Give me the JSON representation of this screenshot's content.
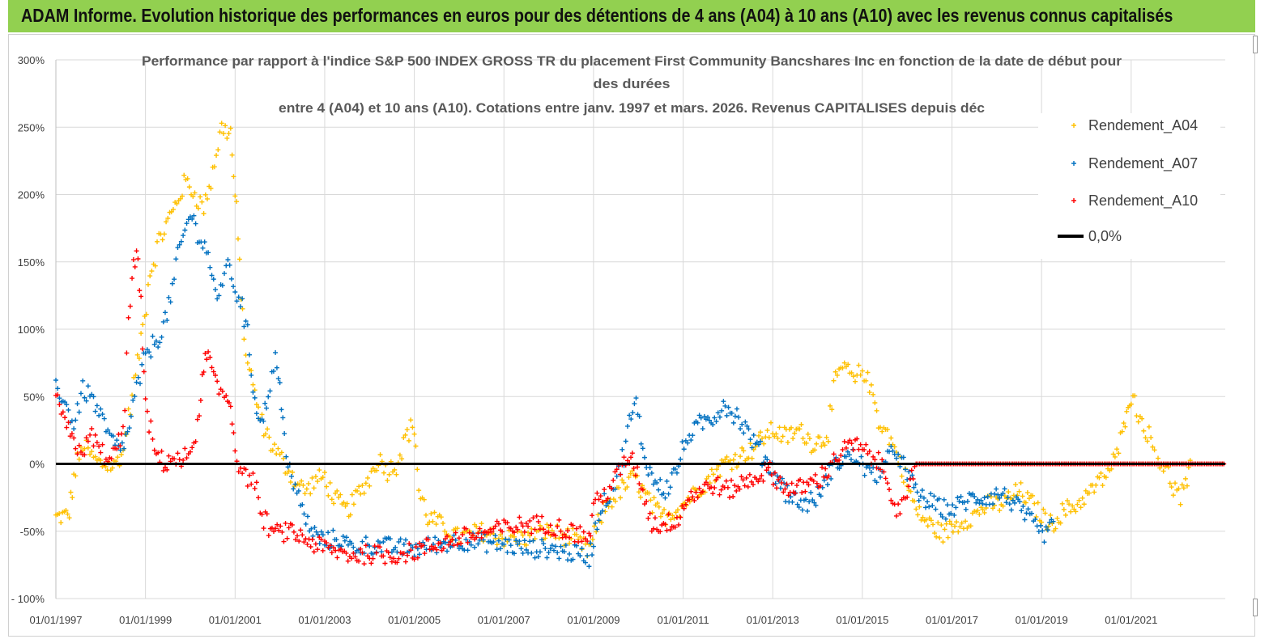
{
  "banner": {
    "text": "ADAM Informe. Evolution historique des performances en euros pour des détentions de 4 ans (A04) à 10 ans (A10) avec les revenus connus capitalisés"
  },
  "colors": {
    "banner": "#92d050",
    "a04": "#ffc000",
    "a07": "#0070c0",
    "a10": "#ff0000",
    "zero": "#000000",
    "grid": "#d9d9d9"
  },
  "chart_data": {
    "type": "scatter",
    "title_lines": [
      "Performance par rapport à l'indice S&P 500 INDEX GROSS TR  du placement First Community Bancshares Inc en fonction de la date de début pour",
      "des durées",
      "entre 4 (A04) et 10 ans (A10). Cotations entre janv. 1997 et mars. 2026. Revenus CAPITALISES depuis déc"
    ],
    "xlabel": "",
    "ylabel": "",
    "xlim": [
      1997.0,
      2023.1
    ],
    "ylim": [
      -100,
      300
    ],
    "y_ticks": [
      {
        "value": 300,
        "label": "300%"
      },
      {
        "value": 250,
        "label": "250%"
      },
      {
        "value": 200,
        "label": "200%"
      },
      {
        "value": 150,
        "label": "150%"
      },
      {
        "value": 100,
        "label": "100%"
      },
      {
        "value": 50,
        "label": "50%"
      },
      {
        "value": 0,
        "label": "0%"
      },
      {
        "value": -50,
        "label": "-50%"
      },
      {
        "value": -100,
        "label": "- 100%"
      }
    ],
    "x_ticks": [
      {
        "value": 1997,
        "label": "01/01/1997"
      },
      {
        "value": 1999,
        "label": "01/01/1999"
      },
      {
        "value": 2001,
        "label": "01/01/2001"
      },
      {
        "value": 2003,
        "label": "01/01/2003"
      },
      {
        "value": 2005,
        "label": "01/01/2005"
      },
      {
        "value": 2007,
        "label": "01/01/2007"
      },
      {
        "value": 2009,
        "label": "01/01/2009"
      },
      {
        "value": 2011,
        "label": "01/01/2011"
      },
      {
        "value": 2013,
        "label": "01/01/2013"
      },
      {
        "value": 2015,
        "label": "01/01/2015"
      },
      {
        "value": 2017,
        "label": "01/01/2017"
      },
      {
        "value": 2019,
        "label": "01/01/2019"
      },
      {
        "value": 2021,
        "label": "01/01/2021"
      }
    ],
    "legend": {
      "position": "top-right",
      "entries": [
        {
          "key": "a04",
          "label": "Rendement_A04",
          "style": "marker"
        },
        {
          "key": "a07",
          "label": "Rendement_A07",
          "style": "marker"
        },
        {
          "key": "a10",
          "label": "Rendement_A10",
          "style": "marker"
        },
        {
          "key": "zero",
          "label": "0,0%",
          "style": "line"
        }
      ]
    },
    "zero_line": 0,
    "series": [
      {
        "name": "Rendement_A04",
        "key": "a04",
        "spread": 7,
        "points": [
          [
            1997.0,
            -40
          ],
          [
            1997.3,
            -38
          ],
          [
            1997.4,
            -10
          ],
          [
            1997.6,
            15
          ],
          [
            1997.8,
            5
          ],
          [
            1998.0,
            0
          ],
          [
            1998.3,
            -2
          ],
          [
            1998.5,
            10
          ],
          [
            1998.7,
            50
          ],
          [
            1998.9,
            90
          ],
          [
            1999.1,
            140
          ],
          [
            1999.3,
            165
          ],
          [
            1999.5,
            180
          ],
          [
            1999.7,
            195
          ],
          [
            1999.9,
            210
          ],
          [
            2000.1,
            200
          ],
          [
            2000.3,
            190
          ],
          [
            2000.5,
            215
          ],
          [
            2000.7,
            250
          ],
          [
            2000.9,
            245
          ],
          [
            2001.0,
            200
          ],
          [
            2001.1,
            150
          ],
          [
            2001.2,
            90
          ],
          [
            2001.4,
            55
          ],
          [
            2001.6,
            30
          ],
          [
            2001.8,
            15
          ],
          [
            2002.0,
            5
          ],
          [
            2002.2,
            -5
          ],
          [
            2002.4,
            -15
          ],
          [
            2002.6,
            -20
          ],
          [
            2002.8,
            -12
          ],
          [
            2003.0,
            -10
          ],
          [
            2003.2,
            -25
          ],
          [
            2003.5,
            -35
          ],
          [
            2003.8,
            -20
          ],
          [
            2004.0,
            -10
          ],
          [
            2004.2,
            5
          ],
          [
            2004.4,
            -5
          ],
          [
            2004.6,
            0
          ],
          [
            2004.8,
            20
          ],
          [
            2005.0,
            30
          ],
          [
            2005.1,
            -20
          ],
          [
            2005.3,
            -40
          ],
          [
            2005.6,
            -45
          ],
          [
            2006.0,
            -55
          ],
          [
            2006.5,
            -50
          ],
          [
            2007.0,
            -55
          ],
          [
            2007.5,
            -55
          ],
          [
            2008.0,
            -50
          ],
          [
            2008.5,
            -55
          ],
          [
            2008.9,
            -65
          ],
          [
            2009.1,
            -45
          ],
          [
            2009.3,
            -30
          ],
          [
            2009.6,
            -20
          ],
          [
            2009.9,
            -10
          ],
          [
            2010.2,
            -25
          ],
          [
            2010.5,
            -40
          ],
          [
            2010.8,
            -35
          ],
          [
            2011.0,
            -30
          ],
          [
            2011.3,
            -20
          ],
          [
            2011.6,
            -10
          ],
          [
            2011.9,
            0
          ],
          [
            2012.2,
            5
          ],
          [
            2012.5,
            10
          ],
          [
            2012.8,
            20
          ],
          [
            2013.0,
            25
          ],
          [
            2013.3,
            20
          ],
          [
            2013.6,
            25
          ],
          [
            2013.9,
            15
          ],
          [
            2014.2,
            20
          ],
          [
            2014.4,
            60
          ],
          [
            2014.6,
            75
          ],
          [
            2014.8,
            60
          ],
          [
            2015.0,
            70
          ],
          [
            2015.2,
            55
          ],
          [
            2015.4,
            30
          ],
          [
            2015.6,
            20
          ],
          [
            2015.8,
            5
          ],
          [
            2016.0,
            -15
          ],
          [
            2016.2,
            -35
          ],
          [
            2016.5,
            -45
          ],
          [
            2016.8,
            -52
          ],
          [
            2017.1,
            -45
          ],
          [
            2017.5,
            -38
          ],
          [
            2017.8,
            -30
          ],
          [
            2018.1,
            -30
          ],
          [
            2018.5,
            -20
          ],
          [
            2018.8,
            -30
          ],
          [
            2019.0,
            -38
          ],
          [
            2019.2,
            -45
          ],
          [
            2019.5,
            -35
          ],
          [
            2019.8,
            -30
          ],
          [
            2020.1,
            -20
          ],
          [
            2020.4,
            -10
          ],
          [
            2020.6,
            0
          ],
          [
            2020.8,
            20
          ],
          [
            2020.9,
            45
          ],
          [
            2021.0,
            50
          ],
          [
            2021.2,
            35
          ],
          [
            2021.4,
            20
          ],
          [
            2021.6,
            5
          ],
          [
            2021.8,
            -5
          ],
          [
            2021.9,
            -15
          ],
          [
            2022.1,
            -25
          ],
          [
            2022.25,
            -15
          ],
          [
            2022.35,
            0
          ]
        ]
      },
      {
        "name": "Rendement_A07",
        "key": "a07",
        "spread": 7,
        "points": [
          [
            1997.0,
            60
          ],
          [
            1997.2,
            45
          ],
          [
            1997.4,
            30
          ],
          [
            1997.6,
            55
          ],
          [
            1997.8,
            50
          ],
          [
            1998.0,
            35
          ],
          [
            1998.2,
            20
          ],
          [
            1998.4,
            10
          ],
          [
            1998.6,
            20
          ],
          [
            1998.8,
            55
          ],
          [
            1999.0,
            80
          ],
          [
            1999.2,
            90
          ],
          [
            1999.4,
            100
          ],
          [
            1999.6,
            130
          ],
          [
            1999.8,
            165
          ],
          [
            2000.0,
            185
          ],
          [
            2000.2,
            170
          ],
          [
            2000.4,
            155
          ],
          [
            2000.6,
            120
          ],
          [
            2000.8,
            150
          ],
          [
            2001.0,
            130
          ],
          [
            2001.2,
            115
          ],
          [
            2001.4,
            55
          ],
          [
            2001.6,
            30
          ],
          [
            2001.7,
            45
          ],
          [
            2001.9,
            80
          ],
          [
            2002.0,
            55
          ],
          [
            2002.1,
            20
          ],
          [
            2002.3,
            -15
          ],
          [
            2002.5,
            -35
          ],
          [
            2002.7,
            -50
          ],
          [
            2003.0,
            -58
          ],
          [
            2003.3,
            -55
          ],
          [
            2003.6,
            -62
          ],
          [
            2004.0,
            -60
          ],
          [
            2004.5,
            -62
          ],
          [
            2005.0,
            -63
          ],
          [
            2005.5,
            -60
          ],
          [
            2006.0,
            -57
          ],
          [
            2006.5,
            -58
          ],
          [
            2007.0,
            -60
          ],
          [
            2007.5,
            -63
          ],
          [
            2008.0,
            -63
          ],
          [
            2008.5,
            -66
          ],
          [
            2008.9,
            -70
          ],
          [
            2009.0,
            -55
          ],
          [
            2009.2,
            -30
          ],
          [
            2009.4,
            -20
          ],
          [
            2009.6,
            -5
          ],
          [
            2009.8,
            30
          ],
          [
            2009.95,
            45
          ],
          [
            2010.1,
            10
          ],
          [
            2010.3,
            -10
          ],
          [
            2010.6,
            -20
          ],
          [
            2010.9,
            0
          ],
          [
            2011.1,
            20
          ],
          [
            2011.4,
            30
          ],
          [
            2011.7,
            35
          ],
          [
            2011.9,
            45
          ],
          [
            2012.2,
            35
          ],
          [
            2012.5,
            20
          ],
          [
            2012.8,
            5
          ],
          [
            2013.1,
            -10
          ],
          [
            2013.4,
            -25
          ],
          [
            2013.7,
            -30
          ],
          [
            2014.0,
            -25
          ],
          [
            2014.3,
            -5
          ],
          [
            2014.6,
            5
          ],
          [
            2014.9,
            5
          ],
          [
            2015.2,
            -10
          ],
          [
            2015.4,
            -5
          ],
          [
            2015.6,
            5
          ],
          [
            2015.8,
            10
          ],
          [
            2016.0,
            -10
          ],
          [
            2016.3,
            -25
          ],
          [
            2016.6,
            -30
          ],
          [
            2016.9,
            -35
          ],
          [
            2017.2,
            -30
          ],
          [
            2017.5,
            -25
          ],
          [
            2017.8,
            -25
          ],
          [
            2018.1,
            -22
          ],
          [
            2018.4,
            -30
          ],
          [
            2018.7,
            -40
          ],
          [
            2018.9,
            -50
          ],
          [
            2019.1,
            -52
          ],
          [
            2019.3,
            -45
          ]
        ]
      },
      {
        "name": "Rendement_A10",
        "key": "a10",
        "spread": 7,
        "points": [
          [
            1997.0,
            55
          ],
          [
            1997.2,
            30
          ],
          [
            1997.4,
            15
          ],
          [
            1997.6,
            10
          ],
          [
            1997.8,
            20
          ],
          [
            1998.0,
            10
          ],
          [
            1998.2,
            0
          ],
          [
            1998.4,
            15
          ],
          [
            1998.5,
            30
          ],
          [
            1998.7,
            140
          ],
          [
            1998.8,
            155
          ],
          [
            1998.9,
            120
          ],
          [
            1999.0,
            40
          ],
          [
            1999.2,
            10
          ],
          [
            1999.4,
            0
          ],
          [
            1999.6,
            5
          ],
          [
            1999.8,
            0
          ],
          [
            2000.0,
            10
          ],
          [
            2000.2,
            30
          ],
          [
            2000.3,
            75
          ],
          [
            2000.4,
            80
          ],
          [
            2000.6,
            55
          ],
          [
            2000.8,
            50
          ],
          [
            2000.9,
            45
          ],
          [
            2001.0,
            10
          ],
          [
            2001.2,
            -10
          ],
          [
            2001.4,
            -10
          ],
          [
            2001.6,
            -40
          ],
          [
            2001.9,
            -52
          ],
          [
            2002.2,
            -50
          ],
          [
            2002.5,
            -55
          ],
          [
            2002.8,
            -60
          ],
          [
            2003.2,
            -65
          ],
          [
            2003.6,
            -68
          ],
          [
            2004.0,
            -67
          ],
          [
            2004.5,
            -68
          ],
          [
            2005.0,
            -65
          ],
          [
            2005.5,
            -60
          ],
          [
            2006.0,
            -55
          ],
          [
            2006.5,
            -52
          ],
          [
            2007.0,
            -48
          ],
          [
            2007.5,
            -45
          ],
          [
            2008.0,
            -45
          ],
          [
            2008.5,
            -50
          ],
          [
            2008.9,
            -55
          ],
          [
            2009.0,
            -30
          ],
          [
            2009.2,
            -25
          ],
          [
            2009.4,
            -15
          ],
          [
            2009.6,
            -5
          ],
          [
            2009.8,
            5
          ],
          [
            2009.9,
            0
          ],
          [
            2010.1,
            -20
          ],
          [
            2010.3,
            -45
          ],
          [
            2010.6,
            -45
          ],
          [
            2010.9,
            -40
          ],
          [
            2011.1,
            -25
          ],
          [
            2011.4,
            -20
          ],
          [
            2011.7,
            -15
          ],
          [
            2012.0,
            -20
          ],
          [
            2012.3,
            -15
          ],
          [
            2012.6,
            -10
          ],
          [
            2012.9,
            -5
          ],
          [
            2013.2,
            -15
          ],
          [
            2013.5,
            -20
          ],
          [
            2013.8,
            -15
          ],
          [
            2014.1,
            -10
          ],
          [
            2014.4,
            5
          ],
          [
            2014.6,
            10
          ],
          [
            2014.8,
            15
          ],
          [
            2015.0,
            10
          ],
          [
            2015.2,
            5
          ],
          [
            2015.4,
            0
          ],
          [
            2015.6,
            -15
          ],
          [
            2015.8,
            -35
          ],
          [
            2016.0,
            -30
          ],
          [
            2016.1,
            -10
          ],
          [
            2016.2,
            0
          ],
          [
            2017.0,
            0
          ],
          [
            2018.0,
            0
          ],
          [
            2019.0,
            0
          ],
          [
            2020.0,
            0
          ],
          [
            2021.0,
            0
          ],
          [
            2022.0,
            0
          ],
          [
            2023.0,
            0
          ],
          [
            2023.1,
            0
          ]
        ]
      }
    ]
  }
}
